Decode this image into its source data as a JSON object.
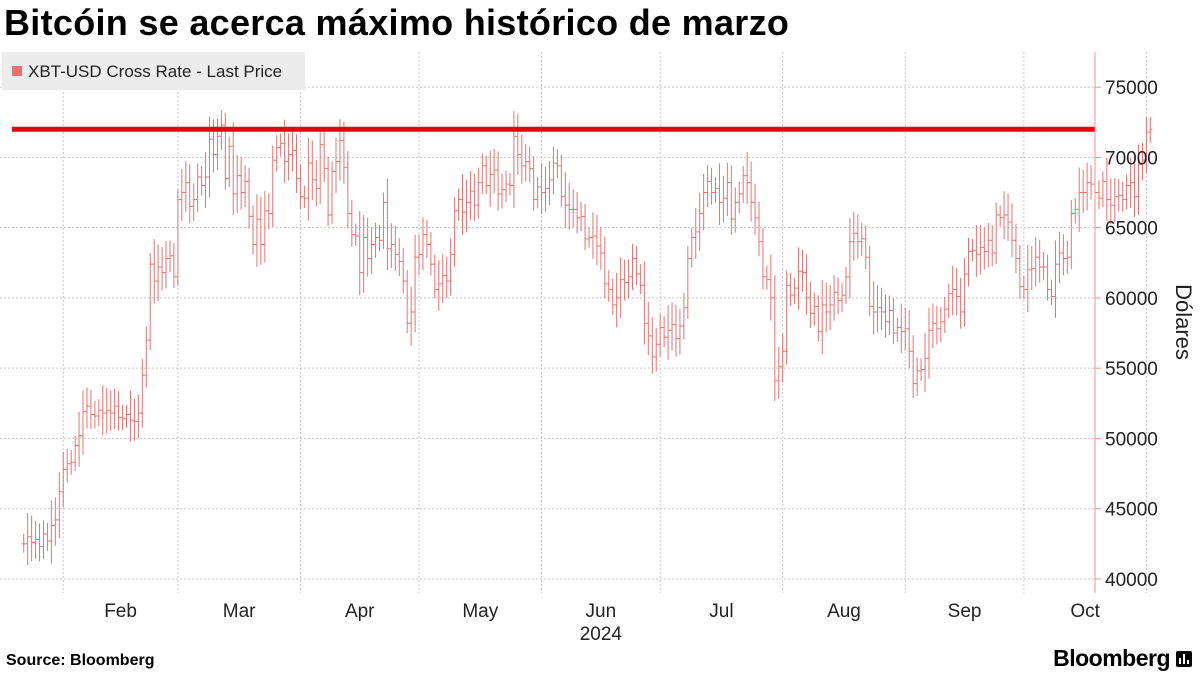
{
  "title": "Bitcóin se acerca máximo histórico de marzo",
  "source": "Source: Bloomberg",
  "brand": "Bloomberg",
  "colors": {
    "series": "#e8716f",
    "reference_line": "#e8000b",
    "axis": "#f3908f",
    "grid": "#c8c8c8"
  },
  "chart_data": {
    "type": "ohlc",
    "title": "Bitcóin se acerca máximo histórico de marzo",
    "ylabel": "Dólares",
    "ylim": [
      39000,
      77500
    ],
    "y_ticks": [
      40000,
      45000,
      50000,
      55000,
      60000,
      65000,
      70000,
      75000
    ],
    "y_tick_labels": [
      "40000",
      "45000",
      "50000",
      "55000",
      "60000",
      "65000",
      "70000",
      "75000"
    ],
    "x_axis_year": "2024",
    "x_ticks": [
      "Feb",
      "Mar",
      "Apr",
      "May",
      "Jun",
      "Jul",
      "Aug",
      "Sep",
      "Oct"
    ],
    "grid": true,
    "legend": {
      "position": "top-left",
      "entries": [
        "XBT-USD Cross Rate - Last Price"
      ]
    },
    "reference_line": {
      "y": 72000,
      "label": ""
    },
    "series": [
      {
        "name": "XBT-USD Cross Rate - Last Price",
        "start": "2024-01-22",
        "closes": [
          42500,
          43000,
          42600,
          42800,
          42300,
          43200,
          42700,
          43800,
          44200,
          46200,
          47800,
          48200,
          48300,
          49500,
          50200,
          51900,
          52300,
          51700,
          51600,
          52000,
          51800,
          52000,
          51800,
          52300,
          51500,
          51400,
          51700,
          51300,
          51200,
          51800,
          54500,
          57000,
          62400,
          61200,
          62200,
          61800,
          62800,
          63000,
          61500,
          67000,
          67500,
          68200,
          66500,
          67000,
          68600,
          68000,
          68600,
          71300,
          70200,
          71500,
          72300,
          68500,
          70800,
          67400,
          68700,
          67500,
          68300,
          65800,
          63800,
          65600,
          63800,
          66200,
          66000,
          69800,
          70700,
          71000,
          69700,
          70200,
          70500,
          68500,
          67200,
          67100,
          69600,
          68400,
          67800,
          70900,
          69200,
          65900,
          69000,
          69700,
          71200,
          69300,
          66000,
          64500,
          64400,
          61800,
          64300,
          62800,
          63800,
          64300,
          64100,
          66800,
          63500,
          63800,
          63100,
          62600,
          61200,
          58200,
          59000,
          62900,
          63100,
          64500,
          63800,
          62400,
          60600,
          61000,
          61600,
          61200,
          63100,
          66200,
          67000,
          66100,
          66800,
          67600,
          66600,
          68200,
          69400,
          68000,
          68800,
          69100,
          67400,
          67700,
          68100,
          68000,
          71500,
          70200,
          69400,
          69700,
          69200,
          67000,
          67900,
          67500,
          67800,
          68400,
          69600,
          69400,
          67200,
          66600,
          66300,
          66300,
          65700,
          65800,
          64200,
          64300,
          64400,
          63700,
          63200,
          61000,
          60600,
          59500,
          60000,
          61300,
          61100,
          61500,
          62800,
          61700,
          60900,
          58200,
          57300,
          55800,
          56700,
          57900,
          57200,
          57700,
          58100,
          57100,
          58000,
          59300,
          62800,
          64300,
          64700,
          66000,
          67500,
          68300,
          67500,
          67800,
          66800,
          67100,
          68200,
          65600,
          66800,
          67400,
          68700,
          68200,
          66800,
          65700,
          64000,
          61500,
          61300,
          60000,
          54100,
          55100,
          56200,
          60900,
          60200,
          60700,
          61900,
          61800,
          60000,
          58900,
          59400,
          57600,
          59500,
          59000,
          59500,
          60400,
          59800,
          60200,
          61500,
          64000,
          64600,
          64000,
          64200,
          62900,
          59400,
          59000,
          59300,
          59000,
          58300,
          59100,
          57500,
          57900,
          57600,
          57800,
          56200,
          53900,
          54800,
          54900,
          55700,
          57700,
          58200,
          57800,
          58300,
          59200,
          60300,
          60600,
          60100,
          59000,
          61700,
          63300,
          63400,
          63100,
          63600,
          63300,
          64100,
          63200,
          65900,
          65700,
          65900,
          65400,
          64100,
          62800,
          60800,
          60600,
          62000,
          62100,
          62900,
          62200,
          62200,
          60600,
          60100,
          62400,
          63200,
          62800,
          62900,
          66000,
          66300,
          67500,
          67500,
          68200,
          68100,
          67500,
          67100,
          68300,
          67000,
          66600,
          67200,
          67300,
          67000,
          68000,
          68200,
          67200,
          69500,
          69800,
          71800,
          72000
        ]
      }
    ]
  }
}
